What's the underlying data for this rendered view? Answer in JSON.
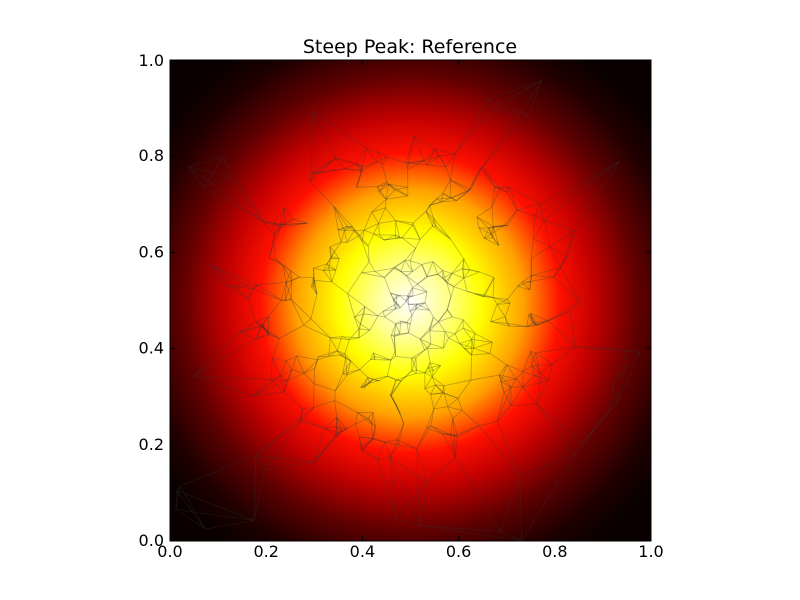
{
  "chart_data": {
    "type": "heatmap",
    "title": "Steep Peak: Reference",
    "xlabel": "",
    "ylabel": "",
    "xlim": [
      0.0,
      1.0
    ],
    "ylim": [
      0.0,
      1.0
    ],
    "x_ticks": [
      "0.0",
      "0.2",
      "0.4",
      "0.6",
      "0.8",
      "1.0"
    ],
    "y_ticks": [
      "0.0",
      "0.2",
      "0.4",
      "0.6",
      "0.8",
      "1.0"
    ],
    "colormap": "hot",
    "peak_center": [
      0.5,
      0.5
    ],
    "peak_value": 1.0,
    "background_value": 0.0,
    "mesh_overlay": true,
    "mesh_color": "#333333",
    "grid": false,
    "legend": "none"
  }
}
